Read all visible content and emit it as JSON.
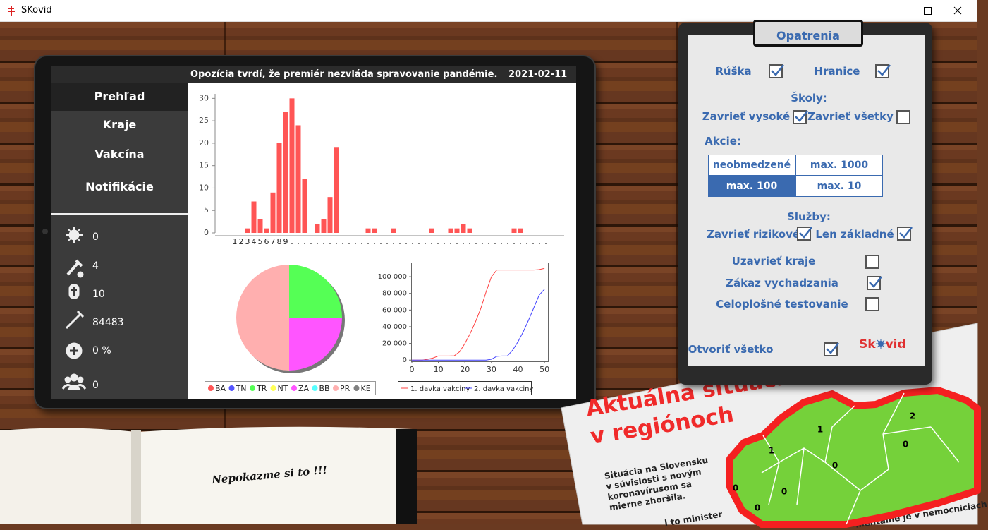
{
  "window": {
    "title": "SKovid"
  },
  "header": {
    "headline": "Opozícia tvrdí, že premiér nezvláda spravovanie pandémie.",
    "date": "2021-02-11"
  },
  "nav": {
    "items": [
      "Prehľad",
      "Kraje",
      "Vakcína",
      "Notifikácie"
    ],
    "selected": 0
  },
  "stats": [
    "0",
    "4",
    "10",
    "84483",
    "0 %",
    "0"
  ],
  "chart_data": [
    {
      "type": "bar",
      "color": "#ff5555",
      "categories": [
        "1",
        "2",
        "3",
        "4",
        "5",
        "6",
        "7",
        "8",
        "9",
        ".",
        ".",
        ".",
        ".",
        ".",
        ".",
        ".",
        ".",
        ".",
        ".",
        ".",
        ".",
        ".",
        ".",
        ".",
        ".",
        ".",
        ".",
        ".",
        ".",
        ".",
        ".",
        ".",
        ".",
        ".",
        ".",
        ".",
        ".",
        ".",
        ".",
        ".",
        ".",
        ".",
        ".",
        ".",
        ".",
        ".",
        ".",
        ".",
        ".",
        "."
      ],
      "values": [
        0,
        0,
        1,
        7,
        3,
        1,
        9,
        20,
        27,
        30,
        24,
        12,
        0,
        2,
        3,
        8,
        19,
        0,
        0,
        0,
        0,
        1,
        1,
        0,
        0,
        1,
        0,
        0,
        0,
        0,
        0,
        1,
        0,
        0,
        1,
        1,
        2,
        1,
        0,
        0,
        0,
        0,
        0,
        0,
        1,
        1,
        0,
        0,
        0,
        0
      ],
      "ylim": [
        0,
        31
      ],
      "yticks": [
        0,
        5,
        10,
        15,
        20,
        25,
        30
      ]
    },
    {
      "type": "pie",
      "categories": [
        "BA",
        "TN",
        "TR",
        "NT",
        "ZA",
        "BB",
        "PR",
        "KE"
      ],
      "values": [
        0,
        0,
        1,
        0,
        1,
        0,
        2,
        0
      ],
      "colors": [
        "#ff5555",
        "#5555ff",
        "#55ff55",
        "#ffff55",
        "#ff55ff",
        "#55ffff",
        "#ffafaf",
        "#808080"
      ]
    },
    {
      "type": "line",
      "x": [
        0,
        2,
        4,
        6,
        8,
        10,
        12,
        14,
        16,
        18,
        20,
        22,
        24,
        26,
        28,
        30,
        32,
        34,
        36,
        38,
        40,
        42,
        44,
        46,
        48,
        50
      ],
      "series": [
        {
          "name": "1. davka vakciny",
          "color": "#ff4040",
          "values": [
            0,
            0,
            0,
            1000,
            2500,
            5000,
            5000,
            5000,
            5200,
            10000,
            20000,
            32000,
            46000,
            62000,
            82000,
            100000,
            108000,
            108000,
            108000,
            108000,
            108000,
            108000,
            108000,
            108000,
            108500,
            110000
          ]
        },
        {
          "name": "2. davka vakciny",
          "color": "#4040ff",
          "values": [
            0,
            0,
            0,
            0,
            0,
            0,
            0,
            0,
            0,
            0,
            0,
            0,
            0,
            0,
            0,
            1000,
            4500,
            5000,
            5000,
            12000,
            22000,
            34000,
            48000,
            63000,
            78000,
            85000
          ]
        }
      ],
      "xlim": [
        0,
        51.3
      ],
      "xticks": [
        0,
        10,
        20,
        30,
        40,
        50
      ],
      "ylim": [
        -1500,
        117000
      ],
      "yticks": [
        0,
        {
          "value": 20000,
          "label": "20 000"
        },
        {
          "value": 40000,
          "label": "40 000"
        },
        {
          "value": 60000,
          "label": "60 000"
        },
        {
          "value": 80000,
          "label": "80 000"
        },
        {
          "value": 100000,
          "label": "100 000"
        }
      ]
    }
  ],
  "measures": {
    "title": "Opatrenia",
    "items": [
      {
        "label": "Rúška",
        "checked": true
      },
      {
        "label": "Hranice",
        "checked": true
      },
      {
        "label": "Zavrieť vysoké",
        "checked": true
      },
      {
        "label": "Zavrieť všetky",
        "checked": false
      },
      {
        "label": "Zavrieť rizikové",
        "checked": true
      },
      {
        "label": "Len základné",
        "checked": true
      },
      {
        "label": "Uzavrieť kraje",
        "checked": false
      },
      {
        "label": "Zákaz vychadzania",
        "checked": true
      },
      {
        "label": "Celoplošné testovanie",
        "checked": false
      },
      {
        "label": "Otvoriť všetko",
        "checked": true
      }
    ],
    "schools_label": "Školy:",
    "events_label": "Akcie:",
    "services_label": "Služby:",
    "events_options": [
      "neobmedzené",
      "max. 1000",
      "max. 100",
      "max. 10"
    ],
    "events_selected": 2,
    "logo_parts": [
      "Sk",
      "vid"
    ]
  },
  "newspaper": {
    "title_lines": [
      "Aktuálna situácia",
      "v regiónoch"
    ],
    "body": "Situácia na Slovensku v súvislosti s novým koronavírusom sa mierne zhoršila.",
    "fragments": [
      "l to minister",
      "mentálne je v nemocniciach"
    ],
    "map_counts": [
      "1",
      "2",
      "1",
      "0",
      "0",
      "0",
      "0",
      "0"
    ]
  },
  "notebook": {
    "note": "Nepokazme si to !!!"
  }
}
